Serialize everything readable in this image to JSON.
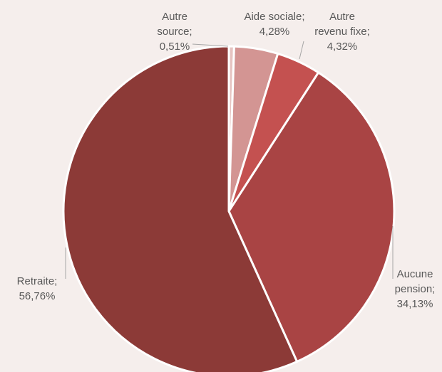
{
  "chart_data": {
    "type": "pie",
    "title": "",
    "legend": "none",
    "start_angle_deg": 0,
    "direction": "clockwise",
    "slices": [
      {
        "name": "Autre source",
        "value": 0.51,
        "label": [
          "Autre",
          "source;",
          "0,51%"
        ],
        "color": "#e6c4c1"
      },
      {
        "name": "Aide sociale",
        "value": 4.28,
        "label": [
          "Aide sociale;",
          "4,28%"
        ],
        "color": "#d39593"
      },
      {
        "name": "Autre revenu fixe",
        "value": 4.32,
        "label": [
          "Autre",
          "revenu fixe;",
          "4,32%"
        ],
        "color": "#c45150"
      },
      {
        "name": "Aucune pension",
        "value": 34.13,
        "label": [
          "Aucune",
          "pension;",
          "34,13%"
        ],
        "color": "#a94444"
      },
      {
        "name": "Retraite",
        "value": 56.76,
        "label": [
          "Retraite;",
          "56,76%"
        ],
        "color": "#8c3a37"
      }
    ],
    "slice_border_color": "#ffffff",
    "leader_line_color": "#a6a6a6",
    "label_text_color": "#595959"
  }
}
